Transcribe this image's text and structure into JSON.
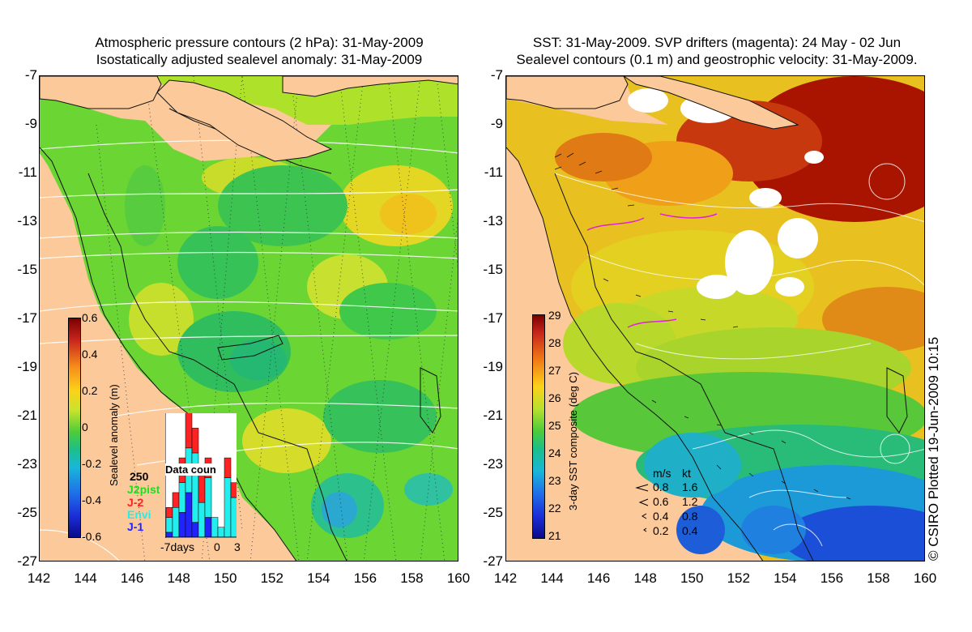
{
  "left_panel": {
    "title_line1": "Atmospheric pressure contours (2 hPa): 31-May-2009",
    "title_line2": "Isostatically adjusted sealevel anomaly: 31-May-2009",
    "colorbar": {
      "label": "Sealevel anomaly (m)",
      "ticks": [
        "0.6",
        "0.4",
        "0.2",
        "0",
        "-0.2",
        "-0.4",
        "-0.6"
      ],
      "range": [
        -0.6,
        0.6
      ]
    },
    "data_count": {
      "title": "Data coun",
      "ymax_label": "250",
      "legend": [
        {
          "name": "J2pist",
          "color": "#22dd22"
        },
        {
          "name": "J-2",
          "color": "#ff2222"
        },
        {
          "name": "Envi",
          "color": "#22eeee"
        },
        {
          "name": "J-1",
          "color": "#2222ff"
        }
      ],
      "x_labels": [
        "-7days",
        "0",
        "3"
      ],
      "bars": [
        {
          "day": -7,
          "J-1": 10,
          "Envi": 30,
          "J-2": 20
        },
        {
          "day": -6,
          "J-1": 0,
          "Envi": 60,
          "J-2": 30
        },
        {
          "day": -5,
          "J-1": 50,
          "Envi": 60,
          "J-2": 50
        },
        {
          "day": -4,
          "J-1": 90,
          "Envi": 90,
          "J-2": 80
        },
        {
          "day": -3,
          "J-1": 30,
          "Envi": 140,
          "J-2": 50
        },
        {
          "day": -2,
          "J-1": 0,
          "Envi": 70,
          "J-2": 70
        },
        {
          "day": -1,
          "J-1": 40,
          "Envi": 80,
          "J-2": 40
        },
        {
          "day": 0,
          "J-1": 0,
          "Envi": 40,
          "J-2": 0
        },
        {
          "day": 1,
          "J-1": 0,
          "Envi": 20,
          "J-2": 0
        },
        {
          "day": 2,
          "J-1": 0,
          "Envi": 120,
          "J-2": 40
        },
        {
          "day": 3,
          "J-1": 0,
          "Envi": 80,
          "J-2": 30
        }
      ]
    }
  },
  "right_panel": {
    "title_line1": "SST: 31-May-2009. SVP drifters (magenta): 24 May - 02 Jun",
    "title_line2": "Sealevel contours (0.1 m) and geostrophic velocity: 31-May-2009.",
    "colorbar": {
      "label": "3-day SST composite (deg C)",
      "ticks": [
        "29",
        "28",
        "27",
        "26",
        "25",
        "24",
        "23",
        "22",
        "21"
      ],
      "range": [
        21,
        29
      ]
    },
    "velocity_key": {
      "header_ms": "m/s",
      "header_kt": "kt",
      "rows": [
        {
          "ms": "0.8",
          "kt": "1.6"
        },
        {
          "ms": "0.6",
          "kt": "1.2"
        },
        {
          "ms": "0.4",
          "kt": "0.8"
        },
        {
          "ms": "0.2",
          "kt": "0.4"
        }
      ]
    }
  },
  "axes": {
    "y_ticks": [
      "-7",
      "-9",
      "-11",
      "-13",
      "-15",
      "-17",
      "-19",
      "-21",
      "-23",
      "-25",
      "-27"
    ],
    "x_ticks": [
      "142",
      "144",
      "146",
      "148",
      "150",
      "152",
      "154",
      "156",
      "158",
      "160"
    ],
    "lat_range": [
      -27,
      -7
    ],
    "lon_range": [
      142,
      160
    ]
  },
  "footer": {
    "copyright": "© CSIRO Plotted 19-Jun-2009 10:15"
  },
  "colors": {
    "land": "#fbc99a",
    "sea_green": "#5cd23a",
    "sst_red": "#b01500"
  }
}
